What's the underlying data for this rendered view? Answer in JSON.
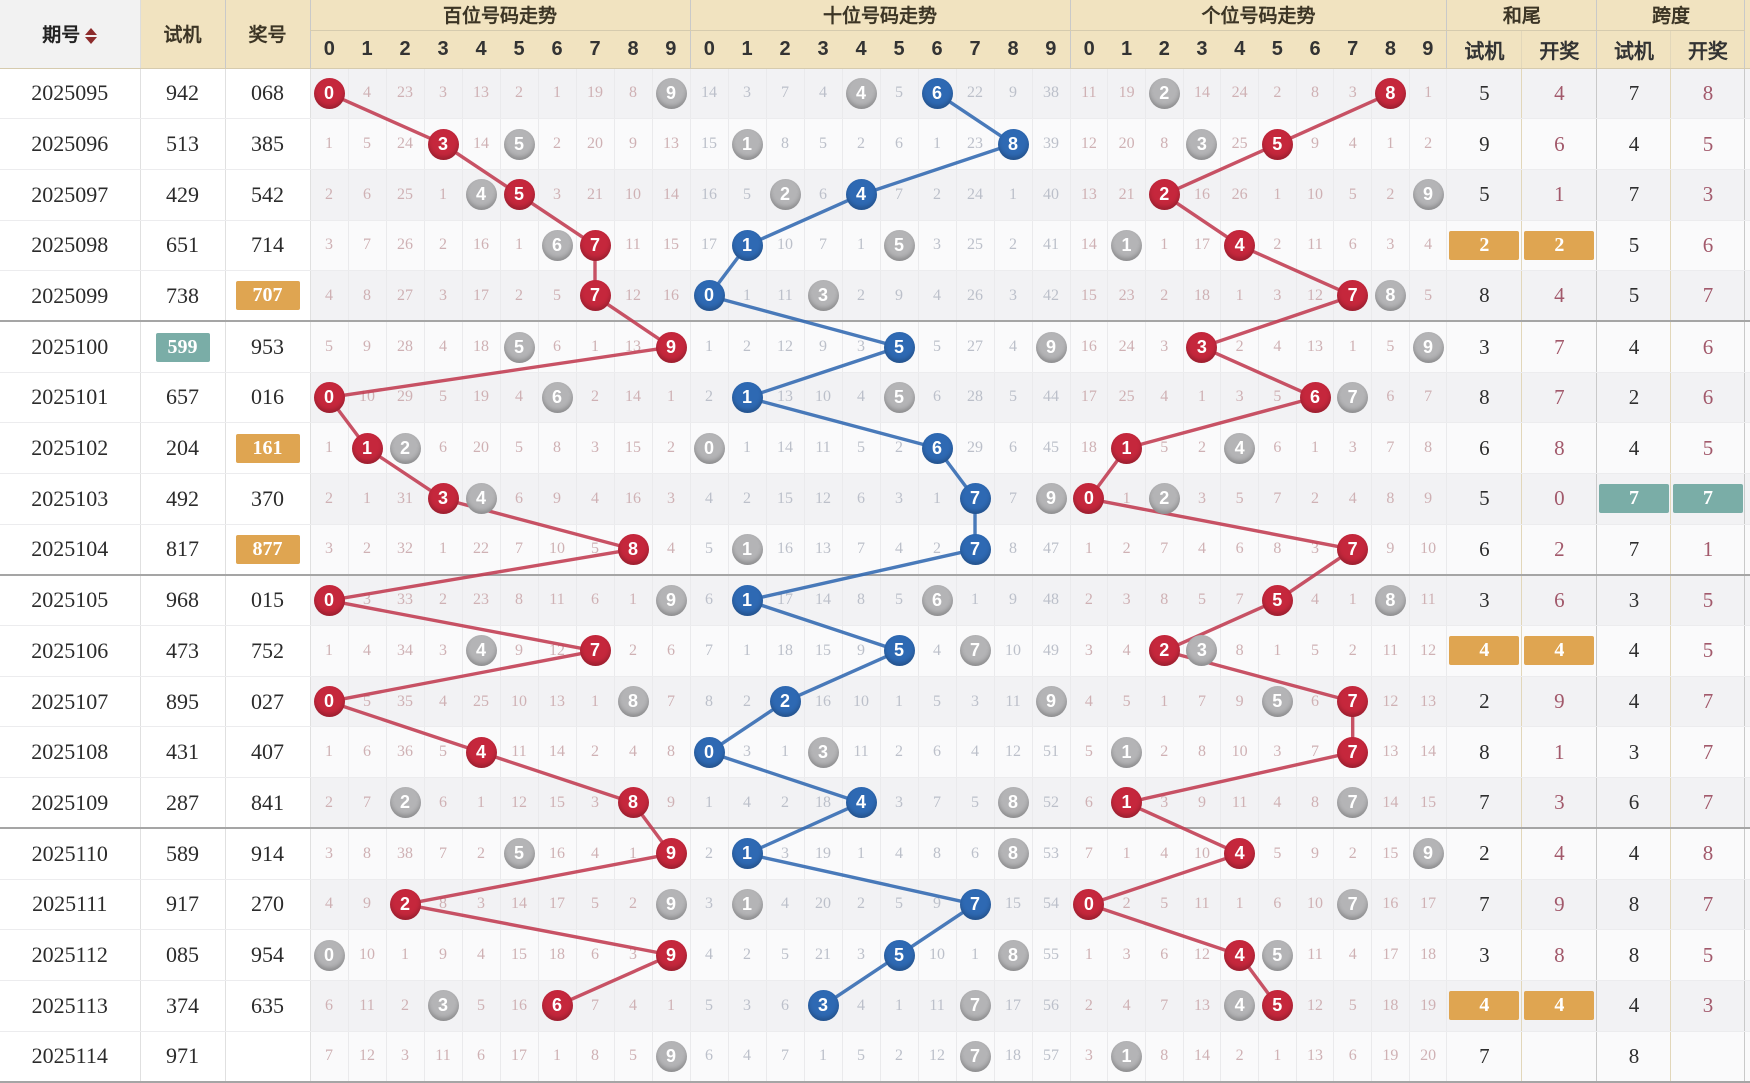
{
  "header": {
    "period": "期号",
    "test": "试机",
    "prize": "奖号",
    "sections": [
      {
        "id": "bai",
        "label": "百位号码走势"
      },
      {
        "id": "shi",
        "label": "十位号码走势"
      },
      {
        "id": "ge",
        "label": "个位号码走势"
      }
    ],
    "digits": [
      "0",
      "1",
      "2",
      "3",
      "4",
      "5",
      "6",
      "7",
      "8",
      "9"
    ],
    "hewei": {
      "label": "和尾",
      "sub": [
        "试机",
        "开奖"
      ]
    },
    "kuadu": {
      "label": "跨度",
      "sub": [
        "试机",
        "开奖"
      ]
    },
    "sort_icon": "up-down-triangles"
  },
  "colors": {
    "prize_ball_red": "#c5273c",
    "prize_ball_blue": "#2e69b3",
    "test_ball_gray": "#b4b4b6",
    "highlight_orange": "#dfa551",
    "highlight_teal": "#7aada7",
    "line_red": "#c03a50",
    "line_blue": "#3068b0",
    "header_beige": "#f1e3c0",
    "miss_pink": "#cfb1b4",
    "miss_gray": "#bcc0ca",
    "kaijiang_text": "#a2596b"
  },
  "legend_note": "P=prize ball (red/blue), G=test-machine ball (gray), plain number = miss count",
  "rows": [
    {
      "p": "2025095",
      "t": "942",
      "z": "068",
      "b": [
        "P0",
        "4",
        "23",
        "3",
        "13",
        "2",
        "1",
        "19",
        "8",
        "G9"
      ],
      "s": [
        "14",
        "3",
        "7",
        "4",
        "G4",
        "5",
        "P6",
        "22",
        "9",
        "38"
      ],
      "g": [
        "11",
        "19",
        "G2",
        "14",
        "24",
        "2",
        "8",
        "3",
        "P8",
        "1"
      ],
      "hw": [
        "5",
        "4"
      ],
      "kd": [
        "7",
        "8"
      ]
    },
    {
      "p": "2025096",
      "t": "513",
      "z": "385",
      "b": [
        "1",
        "5",
        "24",
        "P3",
        "14",
        "G5",
        "2",
        "20",
        "9",
        "13"
      ],
      "s": [
        "15",
        "G1",
        "8",
        "5",
        "2",
        "6",
        "1",
        "23",
        "P8",
        "39"
      ],
      "g": [
        "12",
        "20",
        "8",
        "G3",
        "25",
        "P5",
        "9",
        "4",
        "1",
        "2"
      ],
      "hw": [
        "9",
        "6"
      ],
      "kd": [
        "4",
        "5"
      ]
    },
    {
      "p": "2025097",
      "t": "429",
      "z": "542",
      "b": [
        "2",
        "6",
        "25",
        "1",
        "G4",
        "P5",
        "3",
        "21",
        "10",
        "14"
      ],
      "s": [
        "16",
        "5",
        "G2",
        "6",
        "P4",
        "7",
        "2",
        "24",
        "1",
        "40"
      ],
      "g": [
        "13",
        "21",
        "P2",
        "16",
        "26",
        "1",
        "10",
        "5",
        "2",
        "G9"
      ],
      "hw": [
        "5",
        "1"
      ],
      "kd": [
        "7",
        "3"
      ]
    },
    {
      "p": "2025098",
      "t": "651",
      "z": "714",
      "b": [
        "3",
        "7",
        "26",
        "2",
        "16",
        "1",
        "G6",
        "P7",
        "11",
        "15"
      ],
      "s": [
        "17",
        "P1",
        "10",
        "7",
        "1",
        "G5",
        "3",
        "25",
        "2",
        "41"
      ],
      "g": [
        "14",
        "G1",
        "1",
        "17",
        "P4",
        "2",
        "11",
        "6",
        "3",
        "4"
      ],
      "hw": [
        "2",
        "2"
      ],
      "hwHl": "orange",
      "kd": [
        "5",
        "6"
      ]
    },
    {
      "p": "2025099",
      "t": "738",
      "z": "707",
      "zHl": "orange",
      "b": [
        "4",
        "8",
        "27",
        "3",
        "17",
        "2",
        "5",
        "P7",
        "12",
        "16"
      ],
      "s": [
        "P0",
        "1",
        "11",
        "G3",
        "2",
        "9",
        "4",
        "26",
        "3",
        "42"
      ],
      "g": [
        "15",
        "23",
        "2",
        "18",
        "1",
        "3",
        "12",
        "P7",
        "G8",
        "5"
      ],
      "hw": [
        "8",
        "4"
      ],
      "kd": [
        "5",
        "7"
      ]
    },
    {
      "p": "2025100",
      "t": "599",
      "tHl": "teal",
      "z": "953",
      "b": [
        "5",
        "9",
        "28",
        "4",
        "18",
        "G5",
        "6",
        "1",
        "13",
        "P9"
      ],
      "s": [
        "1",
        "2",
        "12",
        "9",
        "3",
        "P5",
        "5",
        "27",
        "4",
        "G9"
      ],
      "g": [
        "16",
        "24",
        "3",
        "P3",
        "2",
        "4",
        "13",
        "1",
        "5",
        "G9"
      ],
      "hw": [
        "3",
        "7"
      ],
      "kd": [
        "4",
        "6"
      ]
    },
    {
      "p": "2025101",
      "t": "657",
      "z": "016",
      "b": [
        "P0",
        "10",
        "29",
        "5",
        "19",
        "4",
        "G6",
        "2",
        "14",
        "1"
      ],
      "s": [
        "2",
        "P1",
        "13",
        "10",
        "4",
        "G5",
        "6",
        "28",
        "5",
        "44"
      ],
      "g": [
        "17",
        "25",
        "4",
        "1",
        "3",
        "5",
        "P6",
        "G7",
        "6",
        "7"
      ],
      "hw": [
        "8",
        "7"
      ],
      "kd": [
        "2",
        "6"
      ]
    },
    {
      "p": "2025102",
      "t": "204",
      "z": "161",
      "zHl": "orange",
      "b": [
        "1",
        "P1",
        "G2",
        "6",
        "20",
        "5",
        "8",
        "3",
        "15",
        "2"
      ],
      "s": [
        "G0",
        "1",
        "14",
        "11",
        "5",
        "2",
        "P6",
        "29",
        "6",
        "45"
      ],
      "g": [
        "18",
        "P1",
        "5",
        "2",
        "G4",
        "6",
        "1",
        "3",
        "7",
        "8"
      ],
      "hw": [
        "6",
        "8"
      ],
      "kd": [
        "4",
        "5"
      ]
    },
    {
      "p": "2025103",
      "t": "492",
      "z": "370",
      "b": [
        "2",
        "1",
        "31",
        "P3",
        "G4",
        "6",
        "9",
        "4",
        "16",
        "3"
      ],
      "s": [
        "4",
        "2",
        "15",
        "12",
        "6",
        "3",
        "1",
        "P7",
        "7",
        "G9"
      ],
      "g": [
        "P0",
        "1",
        "G2",
        "3",
        "5",
        "7",
        "2",
        "4",
        "8",
        "9"
      ],
      "hw": [
        "5",
        "0"
      ],
      "kd": [
        "7",
        "7"
      ],
      "kdHl": "teal"
    },
    {
      "p": "2025104",
      "t": "817",
      "z": "877",
      "zHl": "orange",
      "b": [
        "3",
        "2",
        "32",
        "1",
        "22",
        "7",
        "10",
        "5",
        "P8",
        "4"
      ],
      "s": [
        "5",
        "G1",
        "16",
        "13",
        "7",
        "4",
        "2",
        "P7",
        "8",
        "47"
      ],
      "g": [
        "1",
        "2",
        "7",
        "4",
        "6",
        "8",
        "3",
        "P7",
        "9",
        "10"
      ],
      "hw": [
        "6",
        "2"
      ],
      "kd": [
        "7",
        "1"
      ]
    },
    {
      "p": "2025105",
      "t": "968",
      "z": "015",
      "b": [
        "P0",
        "3",
        "33",
        "2",
        "23",
        "8",
        "11",
        "6",
        "1",
        "G9"
      ],
      "s": [
        "6",
        "P1",
        "17",
        "14",
        "8",
        "5",
        "G6",
        "1",
        "9",
        "48"
      ],
      "g": [
        "2",
        "3",
        "8",
        "5",
        "7",
        "P5",
        "4",
        "1",
        "G8",
        "11"
      ],
      "hw": [
        "3",
        "6"
      ],
      "kd": [
        "3",
        "5"
      ]
    },
    {
      "p": "2025106",
      "t": "473",
      "z": "752",
      "b": [
        "1",
        "4",
        "34",
        "3",
        "G4",
        "9",
        "12",
        "P7",
        "2",
        "6"
      ],
      "s": [
        "7",
        "1",
        "18",
        "15",
        "9",
        "P5",
        "4",
        "G7",
        "10",
        "49"
      ],
      "g": [
        "3",
        "4",
        "P2",
        "G3",
        "8",
        "1",
        "5",
        "2",
        "11",
        "12"
      ],
      "hw": [
        "4",
        "4"
      ],
      "hwHl": "orange",
      "kd": [
        "4",
        "5"
      ]
    },
    {
      "p": "2025107",
      "t": "895",
      "z": "027",
      "b": [
        "P0",
        "5",
        "35",
        "4",
        "25",
        "10",
        "13",
        "1",
        "G8",
        "7"
      ],
      "s": [
        "8",
        "2",
        "P2",
        "16",
        "10",
        "1",
        "5",
        "3",
        "11",
        "G9"
      ],
      "g": [
        "4",
        "5",
        "1",
        "7",
        "9",
        "G5",
        "6",
        "P7",
        "12",
        "13"
      ],
      "hw": [
        "2",
        "9"
      ],
      "kd": [
        "4",
        "7"
      ]
    },
    {
      "p": "2025108",
      "t": "431",
      "z": "407",
      "b": [
        "1",
        "6",
        "36",
        "5",
        "P4",
        "11",
        "14",
        "2",
        "4",
        "8"
      ],
      "s": [
        "P0",
        "3",
        "1",
        "G3",
        "11",
        "2",
        "6",
        "4",
        "12",
        "51"
      ],
      "g": [
        "5",
        "G1",
        "2",
        "8",
        "10",
        "3",
        "7",
        "P7",
        "13",
        "14"
      ],
      "hw": [
        "8",
        "1"
      ],
      "kd": [
        "3",
        "7"
      ]
    },
    {
      "p": "2025109",
      "t": "287",
      "z": "841",
      "b": [
        "2",
        "7",
        "G2",
        "6",
        "1",
        "12",
        "15",
        "3",
        "P8",
        "9"
      ],
      "s": [
        "1",
        "4",
        "2",
        "18",
        "P4",
        "3",
        "7",
        "5",
        "G8",
        "52"
      ],
      "g": [
        "6",
        "P1",
        "3",
        "9",
        "11",
        "4",
        "8",
        "G7",
        "14",
        "15"
      ],
      "hw": [
        "7",
        "3"
      ],
      "kd": [
        "6",
        "7"
      ]
    },
    {
      "p": "2025110",
      "t": "589",
      "z": "914",
      "b": [
        "3",
        "8",
        "38",
        "7",
        "2",
        "G5",
        "16",
        "4",
        "1",
        "P9"
      ],
      "s": [
        "2",
        "P1",
        "3",
        "19",
        "1",
        "4",
        "8",
        "6",
        "G8",
        "53"
      ],
      "g": [
        "7",
        "1",
        "4",
        "10",
        "P4",
        "5",
        "9",
        "2",
        "15",
        "G9"
      ],
      "hw": [
        "2",
        "4"
      ],
      "kd": [
        "4",
        "8"
      ]
    },
    {
      "p": "2025111",
      "t": "917",
      "z": "270",
      "b": [
        "4",
        "9",
        "P2",
        "8",
        "3",
        "14",
        "17",
        "5",
        "2",
        "G9"
      ],
      "s": [
        "3",
        "G1",
        "4",
        "20",
        "2",
        "5",
        "9",
        "P7",
        "15",
        "54"
      ],
      "g": [
        "P0",
        "2",
        "5",
        "11",
        "1",
        "6",
        "10",
        "G7",
        "16",
        "17"
      ],
      "hw": [
        "7",
        "9"
      ],
      "kd": [
        "8",
        "7"
      ]
    },
    {
      "p": "2025112",
      "t": "085",
      "z": "954",
      "b": [
        "G0",
        "10",
        "1",
        "9",
        "4",
        "15",
        "18",
        "6",
        "3",
        "P9"
      ],
      "s": [
        "4",
        "2",
        "5",
        "21",
        "3",
        "P5",
        "10",
        "1",
        "G8",
        "55"
      ],
      "g": [
        "1",
        "3",
        "6",
        "12",
        "P4",
        "G5",
        "11",
        "4",
        "17",
        "18"
      ],
      "hw": [
        "3",
        "8"
      ],
      "kd": [
        "8",
        "5"
      ]
    },
    {
      "p": "2025113",
      "t": "374",
      "z": "635",
      "b": [
        "6",
        "11",
        "2",
        "G3",
        "5",
        "16",
        "P6",
        "7",
        "4",
        "1"
      ],
      "s": [
        "5",
        "3",
        "6",
        "P3",
        "4",
        "1",
        "11",
        "G7",
        "17",
        "56"
      ],
      "g": [
        "2",
        "4",
        "7",
        "13",
        "G4",
        "P5",
        "12",
        "5",
        "18",
        "19"
      ],
      "hw": [
        "4",
        "4"
      ],
      "hwHl": "orange",
      "kd": [
        "4",
        "3"
      ]
    },
    {
      "p": "2025114",
      "t": "971",
      "z": "",
      "b": [
        "7",
        "12",
        "3",
        "11",
        "6",
        "17",
        "1",
        "8",
        "5",
        "G9"
      ],
      "s": [
        "6",
        "4",
        "7",
        "1",
        "5",
        "2",
        "12",
        "G7",
        "18",
        "57"
      ],
      "g": [
        "3",
        "G1",
        "8",
        "14",
        "2",
        "1",
        "13",
        "6",
        "19",
        "20"
      ],
      "hw": [
        "7",
        ""
      ],
      "kd": [
        "8",
        ""
      ]
    }
  ]
}
